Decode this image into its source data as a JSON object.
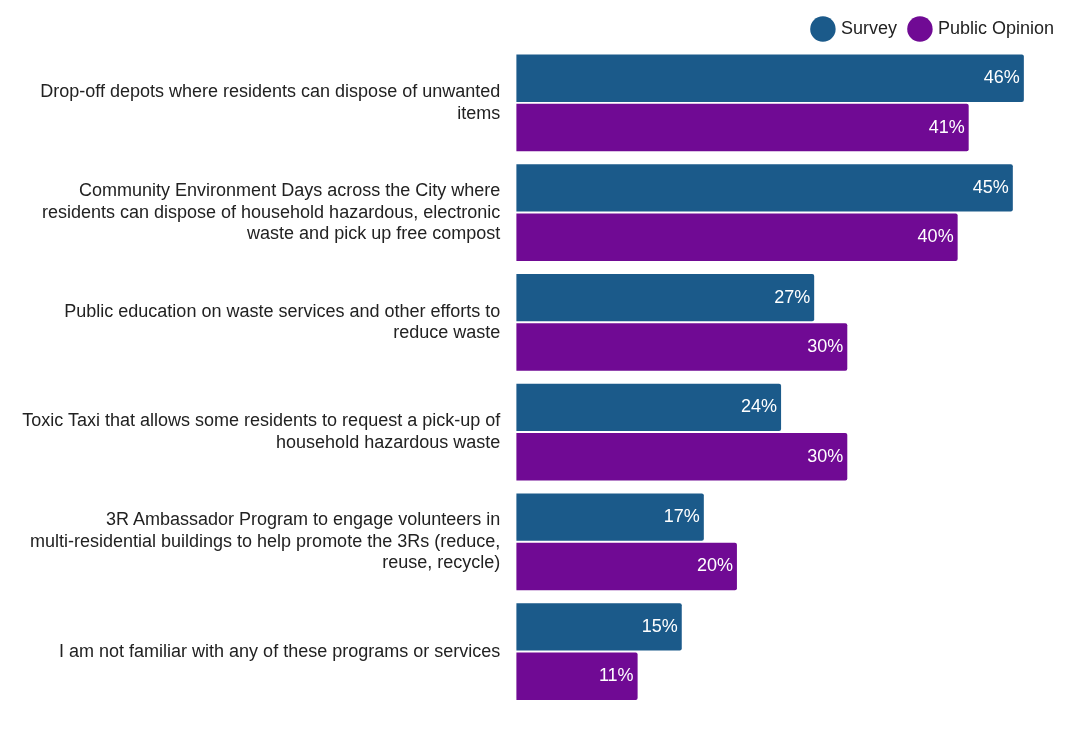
{
  "chart_data": {
    "type": "bar",
    "orientation": "horizontal",
    "categories": [
      "Drop-off depots where residents can dispose of unwanted items",
      "Community Environment Days across the City where residents can dispose of household hazardous, electronic waste and pick up free compost",
      "Public education on waste services and other efforts to reduce waste",
      "Toxic Taxi that allows some residents to request a pick-up of household hazardous waste",
      "3R Ambassador Program to engage volunteers in multi-residential buildings to help promote the 3Rs (reduce, reuse, recycle)",
      "I am not familiar with any of these programs or services"
    ],
    "series": [
      {
        "name": "Survey",
        "color": "#1b5a8a",
        "values": [
          46,
          45,
          27,
          24,
          17,
          15
        ],
        "value_labels": [
          "46%",
          "45%",
          "27%",
          "24%",
          "17%",
          "15%"
        ]
      },
      {
        "name": "Public Opinion",
        "color": "#700a94",
        "values": [
          41,
          40,
          30,
          30,
          20,
          11
        ],
        "value_labels": [
          "41%",
          "40%",
          "30%",
          "30%",
          "20%",
          "11%"
        ]
      }
    ],
    "legend": "top right",
    "grid": false,
    "tick_labels": "y"
  }
}
